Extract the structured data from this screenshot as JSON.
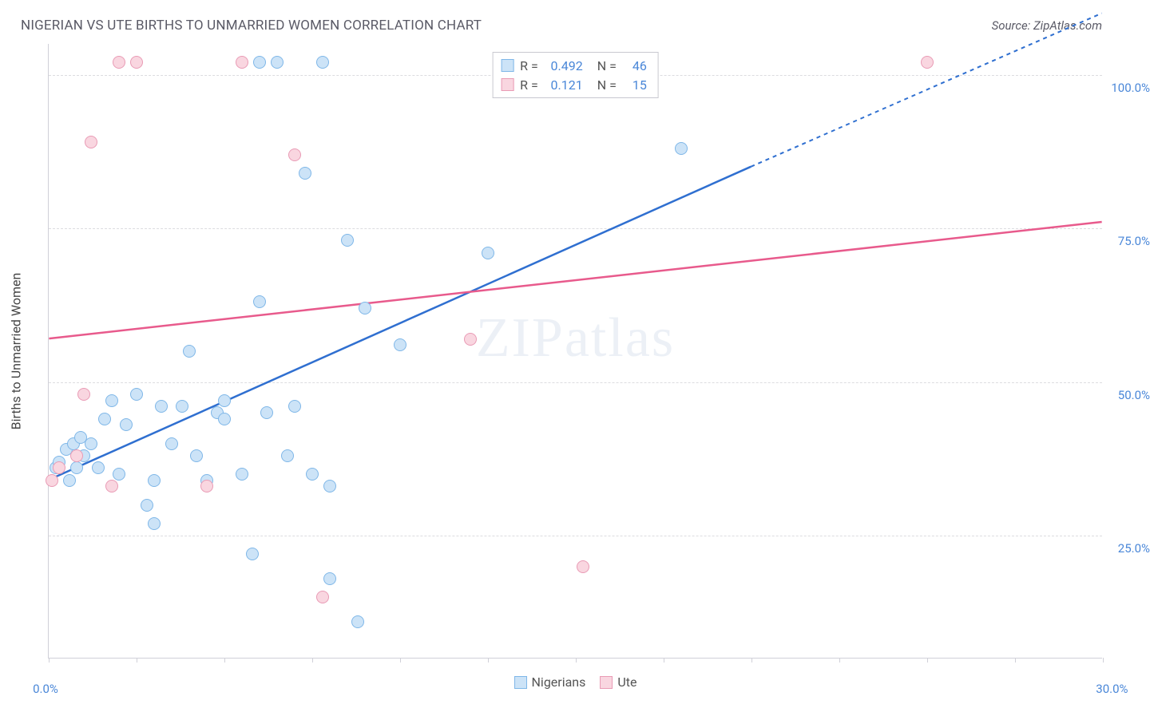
{
  "header": {
    "title": "NIGERIAN VS UTE BIRTHS TO UNMARRIED WOMEN CORRELATION CHART",
    "source": "Source: ZipAtlas.com"
  },
  "chart": {
    "type": "scatter",
    "y_axis_title": "Births to Unmarried Women",
    "watermark": {
      "prefix": "ZIP",
      "suffix": "atlas"
    },
    "background_color": "#ffffff",
    "grid_color": "#dcdce0",
    "axis_color": "#d0d0d8",
    "label_color": "#4a87d8",
    "xlim": [
      0,
      30
    ],
    "ylim": [
      5,
      105
    ],
    "x_ticks": [
      0,
      2.5,
      5,
      7.5,
      10,
      12.5,
      15,
      17.5,
      20,
      22.5,
      25,
      27.5,
      30
    ],
    "x_tick_labels": {
      "0": "0.0%",
      "30": "30.0%"
    },
    "y_gridlines": [
      25,
      50,
      75,
      100
    ],
    "y_tick_labels": {
      "25": "25.0%",
      "50": "50.0%",
      "75": "75.0%",
      "100": "100.0%"
    },
    "marker_radius": 8,
    "series": [
      {
        "id": "nigerians",
        "label": "Nigerians",
        "fill": "#cce3f7",
        "stroke": "#7fb7e8",
        "line_color": "#2f6fd0",
        "r": "0.492",
        "n": "46",
        "trend": {
          "x1": 0,
          "y1": 34,
          "x2": 20,
          "y2": 85,
          "x2_dash": 30,
          "y2_dash": 110
        },
        "points": [
          [
            0.2,
            36
          ],
          [
            0.3,
            37
          ],
          [
            0.5,
            39
          ],
          [
            0.6,
            34
          ],
          [
            0.7,
            40
          ],
          [
            0.8,
            36
          ],
          [
            0.9,
            41
          ],
          [
            1.0,
            38
          ],
          [
            1.2,
            40
          ],
          [
            1.4,
            36
          ],
          [
            1.6,
            44
          ],
          [
            1.8,
            47
          ],
          [
            2.0,
            35
          ],
          [
            2.2,
            43
          ],
          [
            2.5,
            48
          ],
          [
            2.8,
            30
          ],
          [
            3.0,
            34
          ],
          [
            3.0,
            27
          ],
          [
            3.2,
            46
          ],
          [
            3.5,
            40
          ],
          [
            3.8,
            46
          ],
          [
            4.0,
            55
          ],
          [
            4.2,
            38
          ],
          [
            4.5,
            34
          ],
          [
            4.8,
            45
          ],
          [
            5.0,
            47
          ],
          [
            5.0,
            44
          ],
          [
            5.5,
            35
          ],
          [
            5.8,
            22
          ],
          [
            6.0,
            63
          ],
          [
            6.0,
            102
          ],
          [
            6.2,
            45
          ],
          [
            6.5,
            102
          ],
          [
            6.8,
            38
          ],
          [
            7.0,
            46
          ],
          [
            7.3,
            84
          ],
          [
            7.5,
            35
          ],
          [
            7.8,
            102
          ],
          [
            8.0,
            33
          ],
          [
            8.0,
            18
          ],
          [
            8.5,
            73
          ],
          [
            8.8,
            11
          ],
          [
            9.0,
            62
          ],
          [
            10.0,
            56
          ],
          [
            12.5,
            71
          ],
          [
            18.0,
            88
          ]
        ]
      },
      {
        "id": "ute",
        "label": "Ute",
        "fill": "#f9d6e0",
        "stroke": "#e99bb5",
        "line_color": "#e85a8c",
        "r": "0.121",
        "n": "15",
        "trend": {
          "x1": 0,
          "y1": 57,
          "x2": 30,
          "y2": 76
        },
        "points": [
          [
            0.1,
            34
          ],
          [
            0.3,
            36
          ],
          [
            0.8,
            38
          ],
          [
            1.0,
            48
          ],
          [
            1.2,
            89
          ],
          [
            1.8,
            33
          ],
          [
            2.0,
            102
          ],
          [
            2.5,
            102
          ],
          [
            4.5,
            33
          ],
          [
            5.5,
            102
          ],
          [
            7.0,
            87
          ],
          [
            7.8,
            15
          ],
          [
            12.0,
            57
          ],
          [
            15.2,
            20
          ],
          [
            25.0,
            102
          ]
        ]
      }
    ],
    "legend_bottom": [
      {
        "label": "Nigerians",
        "fill": "#cce3f7",
        "stroke": "#7fb7e8"
      },
      {
        "label": "Ute",
        "fill": "#f9d6e0",
        "stroke": "#e99bb5"
      }
    ]
  }
}
